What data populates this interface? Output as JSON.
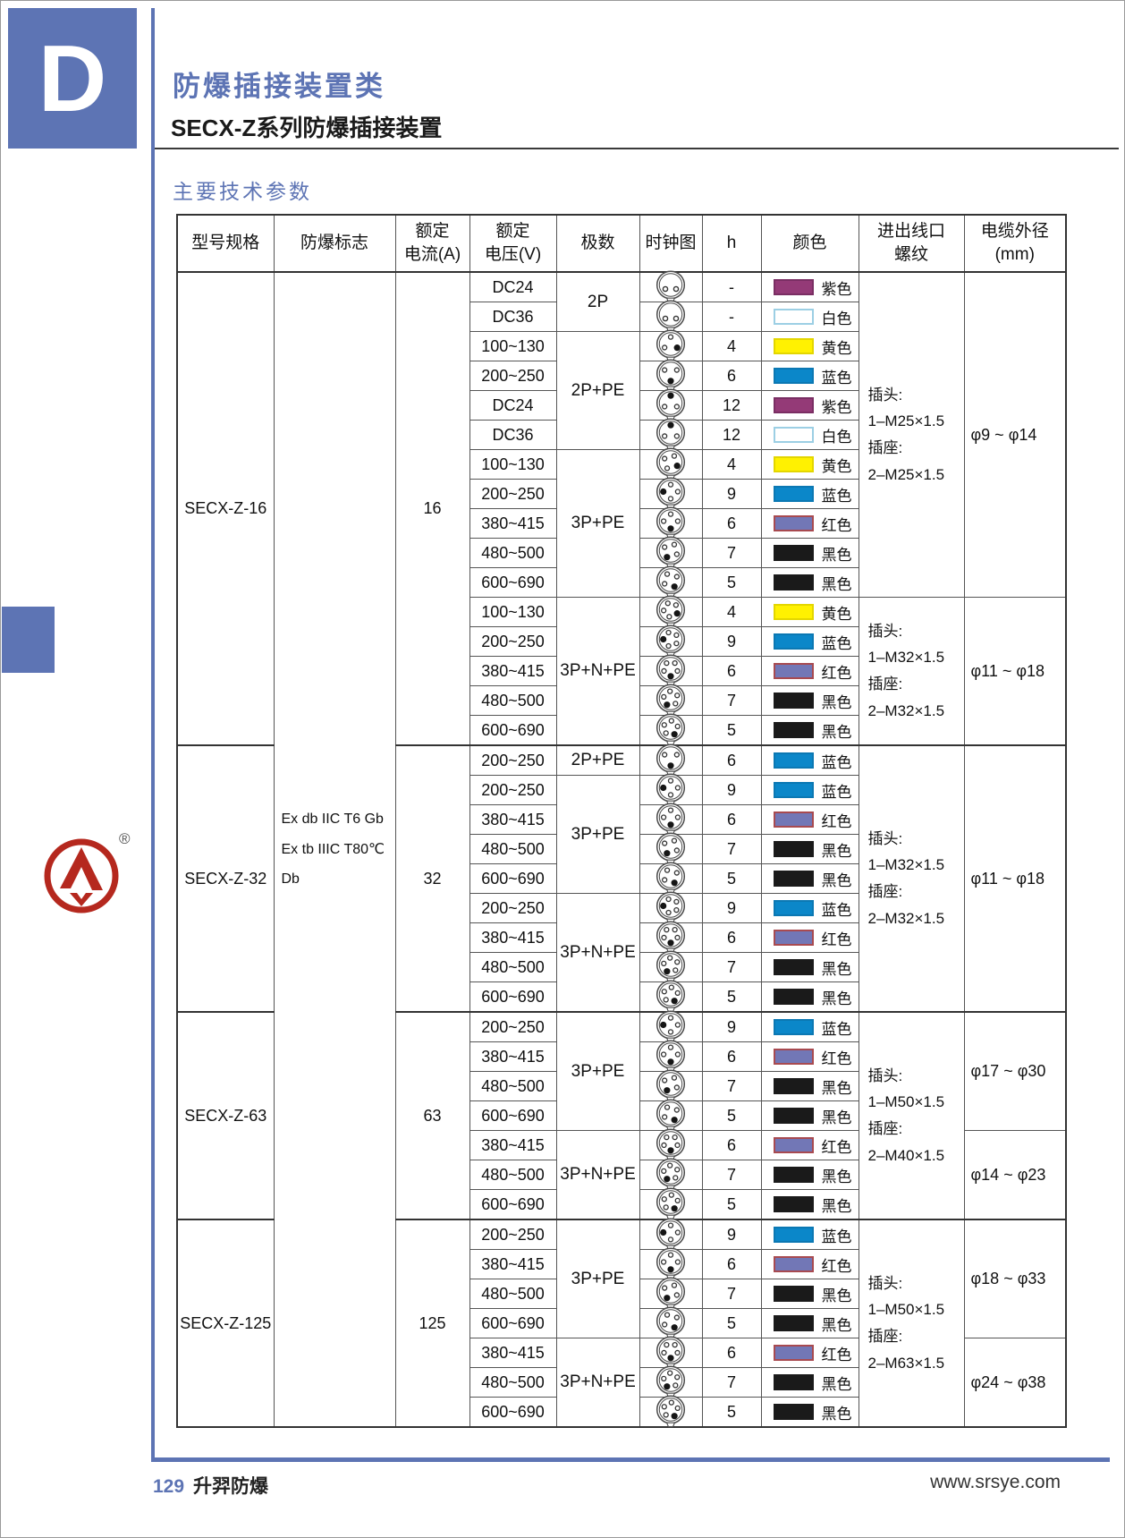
{
  "page": {
    "tab_letter": "D",
    "title": "防爆插接装置类",
    "subtitle": "SECX-Z系列防爆插接装置",
    "section_heading": "主要技术参数",
    "logo_registered_mark": "®",
    "footer": {
      "page_number": "129",
      "brand": "升羿防爆",
      "website": "www.srsye.com"
    }
  },
  "colors": {
    "accent": "#5D74B4",
    "logo_red": "#B5281E",
    "swatches": {
      "purple": {
        "label": "紫色",
        "fill": "#943A77",
        "border": "#7A2E63"
      },
      "white": {
        "label": "白色",
        "fill": "#FFFFFF",
        "border": "#9CCFE4"
      },
      "yellow": {
        "label": "黄色",
        "fill": "#FFF101",
        "border": "#E3D600"
      },
      "blue": {
        "label": "蓝色",
        "fill": "#0B87C9",
        "border": "#0B78B3"
      },
      "red": {
        "label": "红色",
        "fill": "#7277B6",
        "border": "#A84A50"
      },
      "black": {
        "label": "黑色",
        "fill": "#1A1A1A",
        "border": "#1A1A1A"
      }
    }
  },
  "table": {
    "headers": [
      [
        "型号规格"
      ],
      [
        "防爆标志"
      ],
      [
        "额定",
        "电流(A)"
      ],
      [
        "额定",
        "电压(V)"
      ],
      [
        "极数"
      ],
      [
        "时钟图"
      ],
      [
        "h"
      ],
      [
        "颜色"
      ],
      [
        "进出线口",
        "螺纹"
      ],
      [
        "电缆外径",
        "(mm)"
      ]
    ],
    "ex_marking": [
      "Ex db IIC T6 Gb",
      "Ex tb IIIC T80℃ Db"
    ],
    "models": [
      {
        "model": "SECX-Z-16",
        "current": "16",
        "groups": [
          {
            "poles": "2P",
            "pins": 2,
            "rows": [
              {
                "voltage": "DC24",
                "h": "-",
                "color": "purple"
              },
              {
                "voltage": "DC36",
                "h": "-",
                "color": "white"
              }
            ]
          },
          {
            "poles": "2P+PE",
            "pins": 3,
            "rows": [
              {
                "voltage": "100~130",
                "h": "4",
                "color": "yellow"
              },
              {
                "voltage": "200~250",
                "h": "6",
                "color": "blue"
              },
              {
                "voltage": "DC24",
                "h": "12",
                "color": "purple"
              },
              {
                "voltage": "DC36",
                "h": "12",
                "color": "white"
              }
            ]
          },
          {
            "poles": "3P+PE",
            "pins": 4,
            "rows": [
              {
                "voltage": "100~130",
                "h": "4",
                "color": "yellow"
              },
              {
                "voltage": "200~250",
                "h": "9",
                "color": "blue"
              },
              {
                "voltage": "380~415",
                "h": "6",
                "color": "red"
              },
              {
                "voltage": "480~500",
                "h": "7",
                "color": "black"
              },
              {
                "voltage": "600~690",
                "h": "5",
                "color": "black"
              }
            ]
          },
          {
            "poles": "3P+N+PE",
            "pins": 5,
            "rows": [
              {
                "voltage": "100~130",
                "h": "4",
                "color": "yellow"
              },
              {
                "voltage": "200~250",
                "h": "9",
                "color": "blue"
              },
              {
                "voltage": "380~415",
                "h": "6",
                "color": "red"
              },
              {
                "voltage": "480~500",
                "h": "7",
                "color": "black"
              },
              {
                "voltage": "600~690",
                "h": "5",
                "color": "black"
              }
            ]
          }
        ],
        "threads": [
          {
            "rows": 11,
            "lines": [
              "插头:",
              "1–M25×1.5",
              "插座:",
              "2–M25×1.5"
            ]
          },
          {
            "rows": 5,
            "lines": [
              "插头:",
              "1–M32×1.5",
              "插座:",
              "2–M32×1.5"
            ]
          }
        ],
        "cables": [
          {
            "rows": 11,
            "text": "φ9 ~ φ14"
          },
          {
            "rows": 5,
            "text": "φ11 ~ φ18"
          }
        ]
      },
      {
        "model": "SECX-Z-32",
        "current": "32",
        "groups": [
          {
            "poles": "2P+PE",
            "pins": 3,
            "rows": [
              {
                "voltage": "200~250",
                "h": "6",
                "color": "blue"
              }
            ]
          },
          {
            "poles": "3P+PE",
            "pins": 4,
            "rows": [
              {
                "voltage": "200~250",
                "h": "9",
                "color": "blue"
              },
              {
                "voltage": "380~415",
                "h": "6",
                "color": "red"
              },
              {
                "voltage": "480~500",
                "h": "7",
                "color": "black"
              },
              {
                "voltage": "600~690",
                "h": "5",
                "color": "black"
              }
            ]
          },
          {
            "poles": "3P+N+PE",
            "pins": 5,
            "rows": [
              {
                "voltage": "200~250",
                "h": "9",
                "color": "blue"
              },
              {
                "voltage": "380~415",
                "h": "6",
                "color": "red"
              },
              {
                "voltage": "480~500",
                "h": "7",
                "color": "black"
              },
              {
                "voltage": "600~690",
                "h": "5",
                "color": "black"
              }
            ]
          }
        ],
        "threads": [
          {
            "rows": 9,
            "lines": [
              "插头:",
              "1–M32×1.5",
              "插座:",
              "2–M32×1.5"
            ]
          }
        ],
        "cables": [
          {
            "rows": 9,
            "text": "φ11 ~ φ18"
          }
        ]
      },
      {
        "model": "SECX-Z-63",
        "current": "63",
        "groups": [
          {
            "poles": "3P+PE",
            "pins": 4,
            "rows": [
              {
                "voltage": "200~250",
                "h": "9",
                "color": "blue"
              },
              {
                "voltage": "380~415",
                "h": "6",
                "color": "red"
              },
              {
                "voltage": "480~500",
                "h": "7",
                "color": "black"
              },
              {
                "voltage": "600~690",
                "h": "5",
                "color": "black"
              }
            ]
          },
          {
            "poles": "3P+N+PE",
            "pins": 5,
            "rows": [
              {
                "voltage": "380~415",
                "h": "6",
                "color": "red"
              },
              {
                "voltage": "480~500",
                "h": "7",
                "color": "black"
              },
              {
                "voltage": "600~690",
                "h": "5",
                "color": "black"
              }
            ]
          }
        ],
        "threads": [
          {
            "rows": 7,
            "lines": [
              "插头:",
              "1–M50×1.5",
              "插座:",
              "2–M40×1.5"
            ]
          }
        ],
        "cables": [
          {
            "rows": 4,
            "text": "φ17 ~ φ30"
          },
          {
            "rows": 3,
            "text": "φ14 ~ φ23"
          }
        ]
      },
      {
        "model": "SECX-Z-125",
        "current": "125",
        "groups": [
          {
            "poles": "3P+PE",
            "pins": 4,
            "rows": [
              {
                "voltage": "200~250",
                "h": "9",
                "color": "blue"
              },
              {
                "voltage": "380~415",
                "h": "6",
                "color": "red"
              },
              {
                "voltage": "480~500",
                "h": "7",
                "color": "black"
              },
              {
                "voltage": "600~690",
                "h": "5",
                "color": "black"
              }
            ]
          },
          {
            "poles": "3P+N+PE",
            "pins": 5,
            "rows": [
              {
                "voltage": "380~415",
                "h": "6",
                "color": "red"
              },
              {
                "voltage": "480~500",
                "h": "7",
                "color": "black"
              },
              {
                "voltage": "600~690",
                "h": "5",
                "color": "black"
              }
            ]
          }
        ],
        "threads": [
          {
            "rows": 7,
            "lines": [
              "插头:",
              "1–M50×1.5",
              "插座:",
              "2–M63×1.5"
            ]
          }
        ],
        "cables": [
          {
            "rows": 4,
            "text": "φ18 ~ φ33"
          },
          {
            "rows": 3,
            "text": "φ24 ~ φ38"
          }
        ]
      }
    ]
  }
}
